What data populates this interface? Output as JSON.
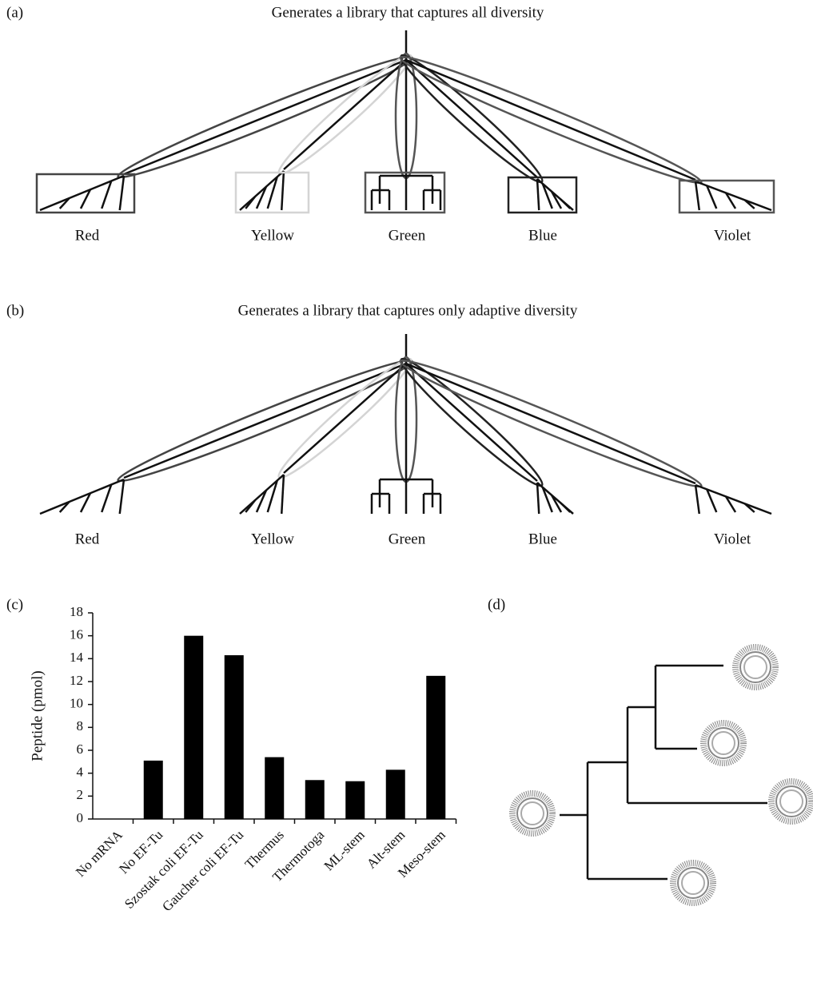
{
  "panel_a": {
    "label": "(a)",
    "title": "Generates a library that captures all diversity",
    "groups": [
      "Red",
      "Yellow",
      "Green",
      "Blue",
      "Violet"
    ]
  },
  "panel_b": {
    "label": "(b)",
    "title": "Generates a library that captures only adaptive diversity",
    "groups": [
      "Red",
      "Yellow",
      "Green",
      "Blue",
      "Violet"
    ]
  },
  "chart_data": {
    "type": "bar",
    "panel_label": "(c)",
    "y_label": "Peptide (pmol)",
    "categories": [
      "No mRNA",
      "No EF-Tu",
      "Szostak coli EF-Tu",
      "Gaucher coli EF-Tu",
      "Thermus",
      "Thermotoga",
      "ML-stem",
      "Alt-stem",
      "Meso-stem"
    ],
    "values": [
      0,
      5.1,
      16.0,
      14.3,
      5.4,
      3.4,
      3.3,
      4.3,
      12.5
    ],
    "color": "#000000",
    "ylim": [
      0,
      18
    ],
    "yticks": [
      0,
      2,
      4,
      6,
      8,
      10,
      12,
      14,
      16,
      18
    ]
  },
  "panel_d": {
    "label": "(d)"
  }
}
